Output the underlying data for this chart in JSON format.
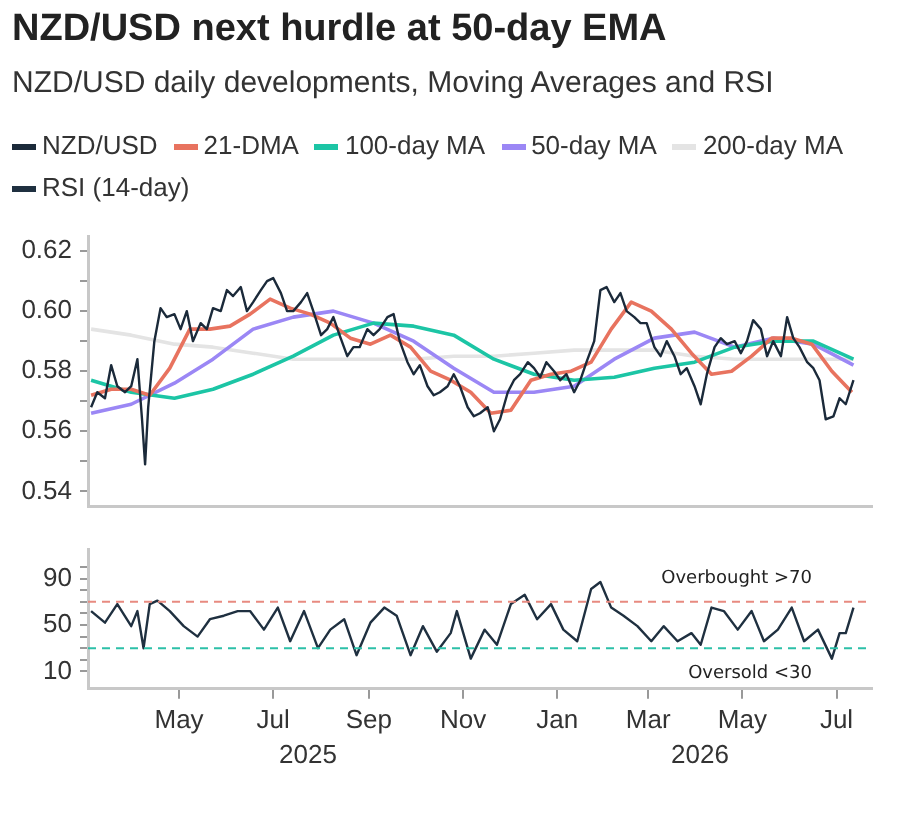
{
  "chart_data": [
    {
      "type": "line",
      "title": "NZD/USD next hurdle at 50-day EMA",
      "subtitle": "NZD/USD daily developments, Moving Averages and RSI",
      "legend": "top",
      "tick_labels": "y",
      "grid": false,
      "xlim": [
        "2025-03-03",
        "2026-07-24"
      ],
      "ylim": [
        0.535,
        0.625
      ],
      "yticks": [
        {
          "value": 0.54,
          "label": "0.54"
        },
        {
          "value": 0.55,
          "label": null
        },
        {
          "value": 0.56,
          "label": "0.56"
        },
        {
          "value": 0.57,
          "label": null
        },
        {
          "value": 0.58,
          "label": "0.58"
        },
        {
          "value": 0.59,
          "label": null
        },
        {
          "value": 0.6,
          "label": "0.60"
        },
        {
          "value": 0.61,
          "label": null
        },
        {
          "value": 0.62,
          "label": "0.62"
        }
      ],
      "series": [
        {
          "name": "NZD/USD",
          "color": "#1b2a3a",
          "x": [
            "2025-03-05",
            "2025-03-09",
            "2025-03-14",
            "2025-03-18",
            "2025-03-22",
            "2025-03-27",
            "2025-03-31",
            "2025-04-04",
            "2025-04-07",
            "2025-04-09",
            "2025-04-11",
            "2025-04-15",
            "2025-04-19",
            "2025-04-23",
            "2025-04-28",
            "2025-05-02",
            "2025-05-06",
            "2025-05-10",
            "2025-05-15",
            "2025-05-19",
            "2025-05-23",
            "2025-05-28",
            "2025-06-01",
            "2025-06-05",
            "2025-06-10",
            "2025-06-14",
            "2025-06-18",
            "2025-06-23",
            "2025-06-27",
            "2025-07-01",
            "2025-07-06",
            "2025-07-10",
            "2025-07-14",
            "2025-07-19",
            "2025-07-23",
            "2025-07-27",
            "2025-08-01",
            "2025-08-05",
            "2025-08-09",
            "2025-08-13",
            "2025-08-18",
            "2025-08-22",
            "2025-08-26",
            "2025-08-31",
            "2025-09-04",
            "2025-09-08",
            "2025-09-13",
            "2025-09-17",
            "2025-09-21",
            "2025-09-26",
            "2025-09-30",
            "2025-10-04",
            "2025-10-09",
            "2025-10-13",
            "2025-10-17",
            "2025-10-22",
            "2025-10-26",
            "2025-10-30",
            "2025-11-04",
            "2025-11-08",
            "2025-11-12",
            "2025-11-17",
            "2025-11-21",
            "2025-11-25",
            "2025-11-30",
            "2025-12-04",
            "2025-12-08",
            "2025-12-13",
            "2025-12-17",
            "2025-12-21",
            "2025-12-25",
            "2025-12-30",
            "2026-01-03",
            "2026-01-07",
            "2026-01-12",
            "2026-01-16",
            "2026-01-20",
            "2026-01-25",
            "2026-01-29",
            "2026-02-02",
            "2026-02-07",
            "2026-02-11",
            "2026-02-15",
            "2026-02-20",
            "2026-02-24",
            "2026-02-28",
            "2026-03-05",
            "2026-03-09",
            "2026-03-13",
            "2026-03-18",
            "2026-03-22",
            "2026-03-26",
            "2026-03-31",
            "2026-04-04",
            "2026-04-08",
            "2026-04-13",
            "2026-04-17",
            "2026-04-21",
            "2026-04-26",
            "2026-04-30",
            "2026-05-04",
            "2026-05-08",
            "2026-05-13",
            "2026-05-17",
            "2026-05-21",
            "2026-05-26",
            "2026-05-30",
            "2026-06-03",
            "2026-06-07",
            "2026-06-12",
            "2026-06-16",
            "2026-06-20",
            "2026-06-24",
            "2026-06-29",
            "2026-07-03",
            "2026-07-07",
            "2026-07-12"
          ],
          "values": [
            0.568,
            0.573,
            0.571,
            0.582,
            0.575,
            0.573,
            0.575,
            0.584,
            0.564,
            0.549,
            0.568,
            0.59,
            0.601,
            0.598,
            0.599,
            0.594,
            0.6,
            0.59,
            0.596,
            0.594,
            0.601,
            0.6,
            0.607,
            0.605,
            0.608,
            0.6,
            0.603,
            0.607,
            0.61,
            0.611,
            0.606,
            0.6,
            0.6,
            0.603,
            0.606,
            0.6,
            0.592,
            0.594,
            0.598,
            0.592,
            0.585,
            0.588,
            0.588,
            0.594,
            0.592,
            0.594,
            0.598,
            0.599,
            0.59,
            0.583,
            0.579,
            0.582,
            0.575,
            0.572,
            0.573,
            0.575,
            0.579,
            0.575,
            0.568,
            0.565,
            0.566,
            0.568,
            0.56,
            0.564,
            0.573,
            0.577,
            0.579,
            0.583,
            0.581,
            0.578,
            0.583,
            0.58,
            0.577,
            0.579,
            0.573,
            0.577,
            0.583,
            0.59,
            0.607,
            0.608,
            0.603,
            0.606,
            0.6,
            0.598,
            0.596,
            0.596,
            0.588,
            0.585,
            0.59,
            0.585,
            0.579,
            0.581,
            0.575,
            0.569,
            0.579,
            0.588,
            0.591,
            0.589,
            0.59,
            0.586,
            0.59,
            0.597,
            0.594,
            0.585,
            0.59,
            0.585,
            0.598,
            0.591,
            0.588,
            0.583,
            0.581,
            0.577,
            0.564,
            0.565,
            0.571,
            0.569,
            0.577
          ]
        },
        {
          "name": "21-DMA",
          "color": "#e8735f",
          "x": [
            "2025-03-05",
            "2025-03-18",
            "2025-03-31",
            "2025-04-12",
            "2025-04-25",
            "2025-05-08",
            "2025-05-21",
            "2025-06-03",
            "2025-06-16",
            "2025-06-29",
            "2025-07-12",
            "2025-07-25",
            "2025-08-07",
            "2025-08-20",
            "2025-09-02",
            "2025-09-15",
            "2025-09-28",
            "2025-10-11",
            "2025-10-24",
            "2025-11-06",
            "2025-11-19",
            "2025-12-02",
            "2025-12-15",
            "2025-12-28",
            "2026-01-10",
            "2026-01-23",
            "2026-02-05",
            "2026-02-18",
            "2026-03-03",
            "2026-03-16",
            "2026-03-29",
            "2026-04-11",
            "2026-04-24",
            "2026-05-07",
            "2026-05-20",
            "2026-06-02",
            "2026-06-15",
            "2026-06-28",
            "2026-07-11"
          ],
          "values": [
            0.572,
            0.574,
            0.574,
            0.572,
            0.581,
            0.594,
            0.594,
            0.595,
            0.599,
            0.604,
            0.601,
            0.599,
            0.596,
            0.591,
            0.589,
            0.592,
            0.588,
            0.58,
            0.577,
            0.573,
            0.566,
            0.567,
            0.577,
            0.579,
            0.58,
            0.583,
            0.594,
            0.603,
            0.6,
            0.594,
            0.586,
            0.579,
            0.58,
            0.585,
            0.591,
            0.591,
            0.589,
            0.58,
            0.573
          ]
        },
        {
          "name": "100-day MA",
          "color": "#1cc5a5",
          "x": [
            "2025-03-05",
            "2025-03-31",
            "2025-04-28",
            "2025-05-23",
            "2025-06-18",
            "2025-07-14",
            "2025-08-09",
            "2025-09-04",
            "2025-09-30",
            "2025-10-26",
            "2025-11-21",
            "2025-12-17",
            "2026-01-12",
            "2026-02-07",
            "2026-03-05",
            "2026-03-31",
            "2026-04-26",
            "2026-05-21",
            "2026-06-16",
            "2026-07-12"
          ],
          "values": [
            0.577,
            0.573,
            0.571,
            0.574,
            0.579,
            0.585,
            0.592,
            0.596,
            0.595,
            0.592,
            0.584,
            0.579,
            0.577,
            0.578,
            0.581,
            0.583,
            0.588,
            0.59,
            0.59,
            0.584
          ]
        },
        {
          "name": "50-day MA",
          "color": "#9b87f5",
          "x": [
            "2025-03-05",
            "2025-03-31",
            "2025-04-28",
            "2025-05-23",
            "2025-06-18",
            "2025-07-14",
            "2025-08-09",
            "2025-09-04",
            "2025-09-30",
            "2025-10-26",
            "2025-11-21",
            "2025-12-17",
            "2026-01-12",
            "2026-02-07",
            "2026-03-05",
            "2026-03-31",
            "2026-04-26",
            "2026-05-21",
            "2026-06-16",
            "2026-07-12"
          ],
          "values": [
            0.566,
            0.569,
            0.576,
            0.584,
            0.594,
            0.598,
            0.6,
            0.596,
            0.59,
            0.581,
            0.573,
            0.573,
            0.575,
            0.584,
            0.591,
            0.593,
            0.588,
            0.591,
            0.589,
            0.582
          ]
        },
        {
          "name": "200-day MA",
          "color": "#e4e4e4",
          "x": [
            "2025-03-05",
            "2025-03-31",
            "2025-04-28",
            "2025-05-23",
            "2025-06-18",
            "2025-07-14",
            "2025-08-09",
            "2025-09-04",
            "2025-09-30",
            "2025-10-26",
            "2025-11-21",
            "2025-12-17",
            "2026-01-12",
            "2026-02-07",
            "2026-03-05",
            "2026-03-31",
            "2026-04-26",
            "2026-05-21",
            "2026-06-16",
            "2026-07-12"
          ],
          "values": [
            0.594,
            0.592,
            0.589,
            0.588,
            0.586,
            0.584,
            0.584,
            0.584,
            0.584,
            0.585,
            0.585,
            0.586,
            0.587,
            0.587,
            0.587,
            0.585,
            0.584,
            0.584,
            0.584,
            0.584
          ]
        }
      ]
    },
    {
      "type": "line",
      "legend": "top",
      "grid": false,
      "xlim": [
        "2025-03-03",
        "2026-07-24"
      ],
      "ylim": [
        -5,
        115
      ],
      "xticks": [
        {
          "value": "2025-05-01",
          "label": "May"
        },
        {
          "value": "2025-07-01",
          "label": "Jul"
        },
        {
          "value": "2025-09-01",
          "label": "Sep"
        },
        {
          "value": "2025-11-01",
          "label": "Nov"
        },
        {
          "value": "2026-01-01",
          "label": "Jan"
        },
        {
          "value": "2026-03-01",
          "label": "Mar"
        },
        {
          "value": "2026-05-01",
          "label": "May"
        },
        {
          "value": "2026-07-01",
          "label": "Jul"
        }
      ],
      "yticks": [
        10,
        {
          "value": 20,
          "label": null
        },
        {
          "value": 30,
          "label": null
        },
        {
          "value": 40,
          "label": null
        },
        50,
        {
          "value": 60,
          "label": null
        },
        {
          "value": 70,
          "label": null
        },
        {
          "value": 80,
          "label": null
        },
        90,
        {
          "value": 100,
          "label": null
        }
      ],
      "ref_lines": [
        {
          "axis": "y",
          "value": 70,
          "label": "Overbought >70",
          "color": "#e88a80",
          "line_style": "dashed"
        },
        {
          "axis": "y",
          "value": 30,
          "label": "Oversold <30",
          "color": "#2cc0a8",
          "line_style": "dashed"
        }
      ],
      "annotations": [
        "2025",
        "2026"
      ],
      "series": [
        {
          "name": "RSI (14-day)",
          "color": "#1f3040",
          "x": [
            "2025-03-05",
            "2025-03-14",
            "2025-03-22",
            "2025-03-31",
            "2025-04-04",
            "2025-04-08",
            "2025-04-12",
            "2025-04-17",
            "2025-04-25",
            "2025-05-04",
            "2025-05-13",
            "2025-05-21",
            "2025-05-30",
            "2025-06-08",
            "2025-06-16",
            "2025-06-25",
            "2025-07-04",
            "2025-07-12",
            "2025-07-21",
            "2025-07-30",
            "2025-08-07",
            "2025-08-16",
            "2025-08-24",
            "2025-09-02",
            "2025-09-11",
            "2025-09-19",
            "2025-09-28",
            "2025-10-06",
            "2025-10-15",
            "2025-10-24",
            "2025-10-28",
            "2025-11-06",
            "2025-11-15",
            "2025-11-23",
            "2025-12-02",
            "2025-12-11",
            "2025-12-19",
            "2025-12-28",
            "2026-01-05",
            "2026-01-14",
            "2026-01-23",
            "2026-01-29",
            "2026-02-05",
            "2026-02-13",
            "2026-02-22",
            "2026-03-03",
            "2026-03-11",
            "2026-03-20",
            "2026-03-29",
            "2026-04-04",
            "2026-04-11",
            "2026-04-19",
            "2026-04-28",
            "2026-05-07",
            "2026-05-15",
            "2026-05-24",
            "2026-06-02",
            "2026-06-10",
            "2026-06-19",
            "2026-06-28",
            "2026-07-03",
            "2026-07-07",
            "2026-07-12"
          ],
          "values": [
            62,
            52,
            68,
            49,
            62,
            30,
            68,
            71,
            62,
            49,
            40,
            55,
            58,
            62,
            62,
            46,
            65,
            36,
            62,
            30,
            46,
            55,
            24,
            52,
            65,
            58,
            24,
            49,
            27,
            43,
            62,
            21,
            46,
            33,
            68,
            76,
            55,
            68,
            46,
            36,
            81,
            87,
            65,
            58,
            49,
            36,
            49,
            36,
            43,
            33,
            65,
            62,
            46,
            62,
            36,
            46,
            65,
            36,
            46,
            21,
            43,
            43,
            65
          ]
        }
      ]
    }
  ]
}
